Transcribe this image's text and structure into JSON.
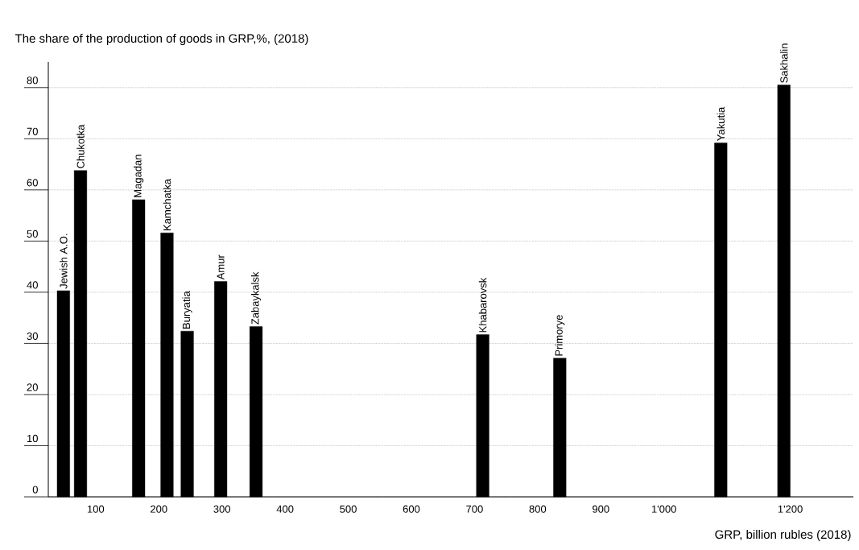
{
  "chart_data": {
    "type": "bar",
    "title": "The share of the production of goods in GRP,%, (2018)",
    "xlabel": "GRP, billion rubles (2018)",
    "x": [
      49,
      76,
      168,
      213,
      245,
      298,
      354,
      713,
      835,
      1090,
      1190
    ],
    "values": [
      40.3,
      63.8,
      58.1,
      51.6,
      32.4,
      42.1,
      33.3,
      31.7,
      27.1,
      69.2,
      80.5
    ],
    "color": "#000000",
    "xlim": [
      25,
      1300
    ],
    "ylim": [
      0,
      85
    ],
    "xticks": [
      100,
      200,
      300,
      400,
      500,
      600,
      700,
      800,
      900,
      {
        "value": 1000,
        "label": "1'000"
      },
      {
        "value": 1200,
        "label": "1'200"
      }
    ],
    "yticks": [
      0,
      10,
      20,
      30,
      40,
      50,
      60,
      70,
      80
    ],
    "grid": "y",
    "annotations": [
      {
        "text": "Jewish A.O.",
        "x": 49,
        "y": 40.3
      },
      {
        "text": "Chukotka",
        "x": 76,
        "y": 63.8
      },
      {
        "text": "Magadan",
        "x": 168,
        "y": 58.1
      },
      {
        "text": "Kamchatka",
        "x": 213,
        "y": 51.6
      },
      {
        "text": "Buryatia",
        "x": 245,
        "y": 32.4
      },
      {
        "text": "Amur",
        "x": 298,
        "y": 42.1
      },
      {
        "text": "Zabaykalsk",
        "x": 354,
        "y": 33.3
      },
      {
        "text": "Khabarovsk",
        "x": 713,
        "y": 31.7
      },
      {
        "text": "Primorye",
        "x": 835,
        "y": 27.1
      },
      {
        "text": "Yakutia",
        "x": 1090,
        "y": 69.2
      },
      {
        "text": "Sakhalin",
        "x": 1190,
        "y": 80.5
      }
    ]
  }
}
